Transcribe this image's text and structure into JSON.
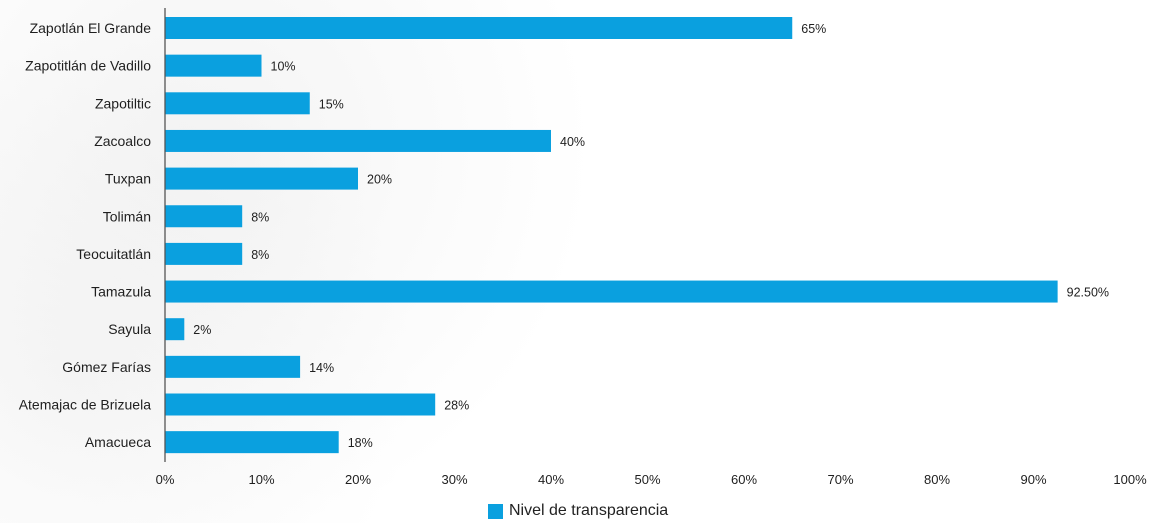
{
  "chart_data": {
    "type": "bar",
    "orientation": "horizontal",
    "categories": [
      "Zapotlán El Grande",
      "Zapotitlán de Vadillo",
      "Zapotiltic",
      "Zacoalco",
      "Tuxpan",
      "Tolimán",
      "Teocuitatlán",
      "Tamazula",
      "Sayula",
      "Gómez Farías",
      "Atemajac de Brizuela",
      "Amacueca"
    ],
    "series": [
      {
        "name": "Nivel de transparencia",
        "values": [
          65,
          10,
          15,
          40,
          20,
          8,
          8,
          92.5,
          2,
          14,
          28,
          18
        ],
        "labels": [
          "65%",
          "10%",
          "15%",
          "40%",
          "20%",
          "8%",
          "8%",
          "92.50%",
          "2%",
          "14%",
          "28%",
          "18%"
        ],
        "color": "#0aa0df"
      }
    ],
    "xlim": [
      0,
      100
    ],
    "xticks": [
      0,
      10,
      20,
      30,
      40,
      50,
      60,
      70,
      80,
      90,
      100
    ],
    "xtick_labels": [
      "0%",
      "10%",
      "20%",
      "30%",
      "40%",
      "50%",
      "60%",
      "70%",
      "80%",
      "90%",
      "100%"
    ],
    "title": "",
    "xlabel": "",
    "ylabel": "",
    "grid": false,
    "legend_position": "bottom-center"
  },
  "legend": {
    "label": "Nivel de transparencia",
    "color": "#0aa0df"
  }
}
